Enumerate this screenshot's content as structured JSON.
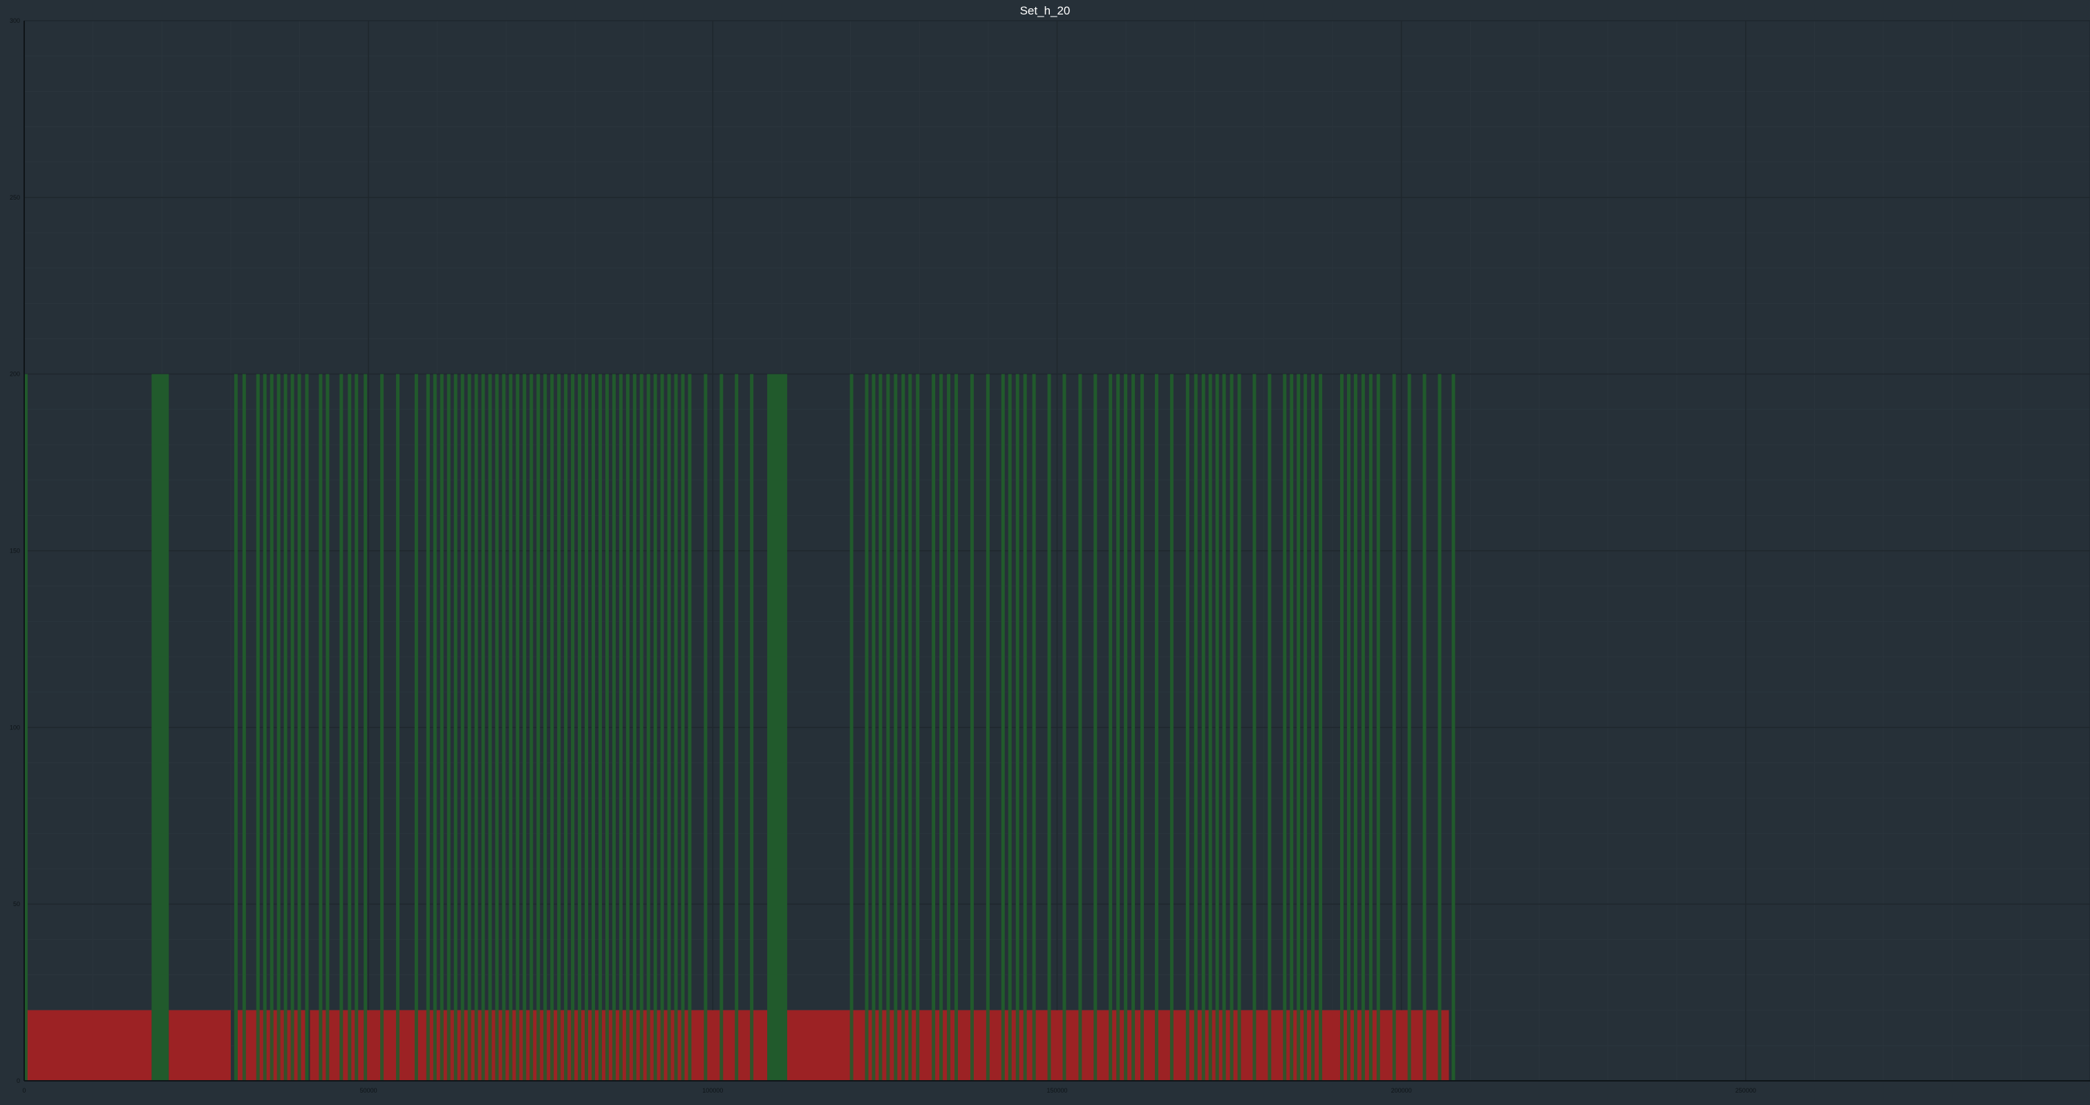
{
  "chart_data": {
    "type": "bar",
    "title": "Set_h_20",
    "xlabel": "",
    "ylabel": "",
    "xlim": [
      0,
      300000
    ],
    "ylim": [
      0,
      300
    ],
    "grid": true,
    "x_ticks": [
      "0",
      "50000",
      "100000",
      "150000",
      "200000",
      "250000"
    ],
    "y_ticks": [
      "0",
      "50",
      "100",
      "150",
      "200",
      "250",
      "300"
    ],
    "colors": {
      "background": "#263038",
      "grid_major": "#1f272d",
      "grid_minor": "#2b353d",
      "green_series": "#215a2c",
      "red_series": "#9c2224",
      "axis": "#0e1418"
    },
    "red_series": {
      "value": 20,
      "ranges": [
        [
          300,
          18500
        ],
        [
          21000,
          30000
        ],
        [
          31000,
          40800
        ],
        [
          41500,
          107900
        ],
        [
          110800,
          206900
        ]
      ]
    },
    "green_series": {
      "value": 200,
      "wide_ranges": [
        [
          18500,
          21000
        ],
        [
          107900,
          110800
        ]
      ],
      "narrow_width": 500,
      "narrow_x": [
        0,
        30500,
        31700,
        33700,
        34700,
        35700,
        36700,
        37700,
        38700,
        39700,
        40800,
        42800,
        43800,
        45800,
        47000,
        48000,
        49300,
        51700,
        54000,
        56700,
        58400,
        59400,
        60400,
        61400,
        62400,
        63400,
        64400,
        65400,
        66400,
        67400,
        68400,
        69400,
        70400,
        71400,
        72400,
        73400,
        74400,
        75400,
        76400,
        77400,
        78400,
        79400,
        80400,
        81400,
        82400,
        83400,
        84400,
        85400,
        86400,
        87400,
        88400,
        89400,
        90400,
        91400,
        92400,
        93400,
        94400,
        95400,
        96400,
        98700,
        101000,
        103200,
        105400,
        119900,
        122100,
        123100,
        124100,
        125200,
        126300,
        127400,
        128400,
        129500,
        131800,
        132900,
        134000,
        135100,
        137400,
        139700,
        141900,
        142900,
        144000,
        145100,
        146400,
        148600,
        150800,
        153100,
        155300,
        157500,
        158600,
        159700,
        160800,
        162100,
        164200,
        166400,
        168700,
        169900,
        171000,
        172000,
        173000,
        174000,
        175100,
        176200,
        178400,
        180600,
        182800,
        183800,
        184800,
        185800,
        186900,
        188000,
        191100,
        192100,
        193100,
        194200,
        195300,
        196400,
        198700,
        200900,
        203100,
        205300,
        207300
      ]
    }
  }
}
